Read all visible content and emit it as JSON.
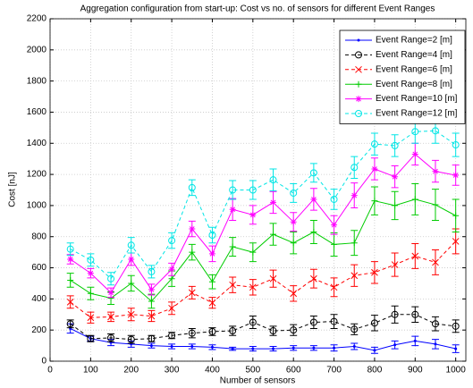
{
  "chart_data": {
    "type": "line",
    "title": "Aggregation configuration from start-up: Cost vs no. of sensors for different Event Ranges",
    "x_label": "Number of sensors",
    "y_label": "Cost [nJ]",
    "x": [
      50,
      100,
      150,
      200,
      250,
      300,
      350,
      400,
      450,
      500,
      550,
      600,
      650,
      700,
      750,
      800,
      850,
      900,
      950,
      1000
    ],
    "xlim": [
      0,
      1025
    ],
    "xticks": [
      0,
      100,
      200,
      300,
      400,
      500,
      600,
      700,
      800,
      900,
      1000
    ],
    "ylim": [
      0,
      2200
    ],
    "yticks": [
      0,
      200,
      400,
      600,
      800,
      1000,
      1200,
      1400,
      1600,
      1800,
      2000,
      2200
    ],
    "grid": true,
    "legend": "upper right",
    "series": [
      {
        "name": "Event Range=2 [m]",
        "color": "#0000ff",
        "linestyle": "solid",
        "marker": "dot",
        "values": [
          210,
          145,
          120,
          110,
          100,
          95,
          95,
          90,
          80,
          80,
          80,
          85,
          85,
          85,
          95,
          70,
          105,
          130,
          110,
          80
        ],
        "errors": [
          30,
          15,
          20,
          20,
          15,
          15,
          15,
          15,
          10,
          15,
          15,
          15,
          15,
          20,
          20,
          20,
          25,
          30,
          30,
          25
        ]
      },
      {
        "name": "Event Range=4 [m]",
        "color": "#000000",
        "linestyle": "dashed",
        "marker": "circle",
        "values": [
          240,
          145,
          150,
          140,
          145,
          165,
          180,
          190,
          195,
          250,
          195,
          200,
          250,
          255,
          205,
          245,
          300,
          300,
          240,
          225
        ],
        "errors": [
          25,
          20,
          25,
          25,
          20,
          20,
          30,
          25,
          30,
          40,
          30,
          35,
          40,
          45,
          35,
          50,
          55,
          50,
          45,
          40
        ]
      },
      {
        "name": "Event Range=6 [m]",
        "color": "#ff0000",
        "linestyle": "dashed",
        "marker": "x",
        "values": [
          380,
          280,
          285,
          300,
          290,
          340,
          440,
          375,
          490,
          475,
          530,
          435,
          530,
          475,
          550,
          570,
          620,
          675,
          635,
          770
        ],
        "errors": [
          40,
          35,
          30,
          40,
          35,
          40,
          40,
          35,
          50,
          50,
          55,
          50,
          60,
          60,
          70,
          70,
          75,
          80,
          80,
          80
        ]
      },
      {
        "name": "Event Range=8 [m]",
        "color": "#00cc00",
        "linestyle": "solid",
        "marker": "plus",
        "values": [
          520,
          435,
          405,
          500,
          385,
          530,
          700,
          510,
          735,
          700,
          815,
          760,
          830,
          750,
          760,
          1030,
          1000,
          1040,
          1005,
          935
        ],
        "errors": [
          45,
          40,
          40,
          50,
          45,
          50,
          50,
          45,
          60,
          60,
          70,
          70,
          75,
          75,
          80,
          90,
          90,
          100,
          100,
          105
        ]
      },
      {
        "name": "Event Range=10 [m]",
        "color": "#ff00ff",
        "linestyle": "solid",
        "marker": "star",
        "values": [
          655,
          565,
          440,
          655,
          460,
          590,
          850,
          690,
          975,
          940,
          1020,
          895,
          1040,
          875,
          1065,
          1235,
          1185,
          1330,
          1220,
          1195
        ],
        "errors": [
          30,
          30,
          30,
          40,
          35,
          40,
          50,
          50,
          70,
          60,
          70,
          60,
          70,
          60,
          80,
          70,
          70,
          70,
          70,
          65
        ]
      },
      {
        "name": "Event Range=12 [m]",
        "color": "#00e5e5",
        "linestyle": "dashed",
        "marker": "circle",
        "values": [
          720,
          650,
          530,
          745,
          575,
          775,
          1115,
          810,
          1100,
          1100,
          1165,
          1080,
          1210,
          1040,
          1245,
          1395,
          1385,
          1475,
          1480,
          1390
        ],
        "errors": [
          40,
          40,
          40,
          50,
          40,
          50,
          50,
          50,
          60,
          60,
          70,
          60,
          60,
          65,
          70,
          70,
          70,
          75,
          80,
          75
        ]
      }
    ]
  }
}
